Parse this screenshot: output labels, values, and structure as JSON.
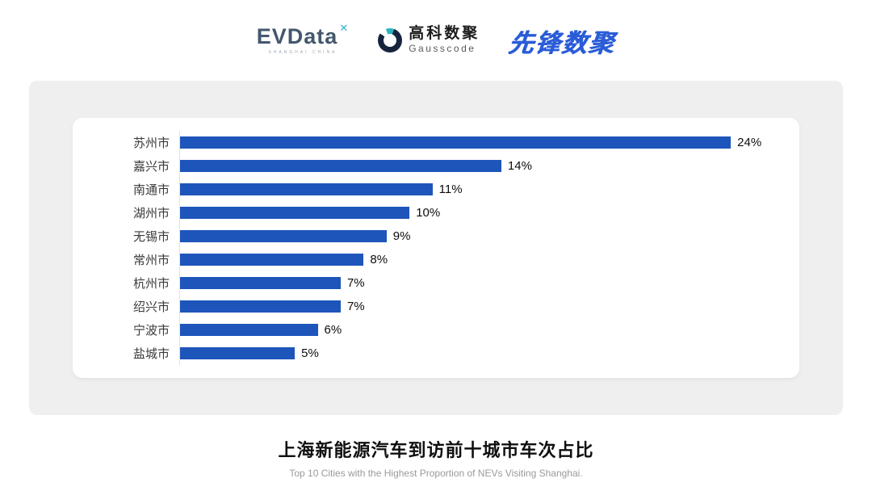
{
  "header": {
    "evdata": {
      "text": "EVData",
      "sup": "✕",
      "subtext": "SHANGHAI CHINA"
    },
    "gausscode": {
      "cn": "高科数聚",
      "en": "Gausscode"
    },
    "pioneer": {
      "text": "先锋数聚"
    }
  },
  "chart_data": {
    "type": "bar",
    "orientation": "horizontal",
    "title": "上海新能源汽车到访前十城市车次占比",
    "subtitle": "Top 10 Cities with the Highest Proportion of  NEVs Visiting Shanghai.",
    "categories": [
      "苏州市",
      "嘉兴市",
      "南通市",
      "湖州市",
      "无锡市",
      "常州市",
      "杭州市",
      "绍兴市",
      "宁波市",
      "盐城市"
    ],
    "values": [
      24,
      14,
      11,
      10,
      9,
      8,
      7,
      7,
      6,
      5
    ],
    "value_labels": [
      "24%",
      "14%",
      "11%",
      "10%",
      "9%",
      "8%",
      "7%",
      "7%",
      "6%",
      "5%"
    ],
    "xlim": [
      0,
      26
    ],
    "bar_color": "#1d55bb",
    "axis_line_color": "#e2e2e2",
    "grid": false,
    "legend": "none"
  },
  "footer": {
    "title": "上海新能源汽车到访前十城市车次占比",
    "subtitle": "Top 10 Cities with the Highest Proportion of  NEVs Visiting Shanghai."
  }
}
